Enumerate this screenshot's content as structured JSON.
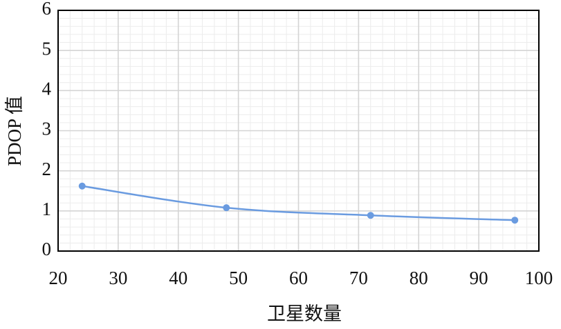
{
  "chart_data": {
    "type": "line",
    "x_label": "卫星数量",
    "y_label": "PDOP 值",
    "x": [
      24,
      48,
      72,
      96
    ],
    "series": [
      {
        "color": "#6a9be0",
        "values": [
          1.62,
          1.08,
          0.89,
          0.77
        ]
      }
    ],
    "xlim": [
      20,
      100
    ],
    "xticks": [
      20,
      30,
      40,
      50,
      60,
      70,
      80,
      90,
      100
    ],
    "ylim": [
      0,
      6
    ],
    "yticks": [
      0,
      1,
      2,
      3,
      4,
      5,
      6
    ],
    "grid": true,
    "smooth": true
  }
}
